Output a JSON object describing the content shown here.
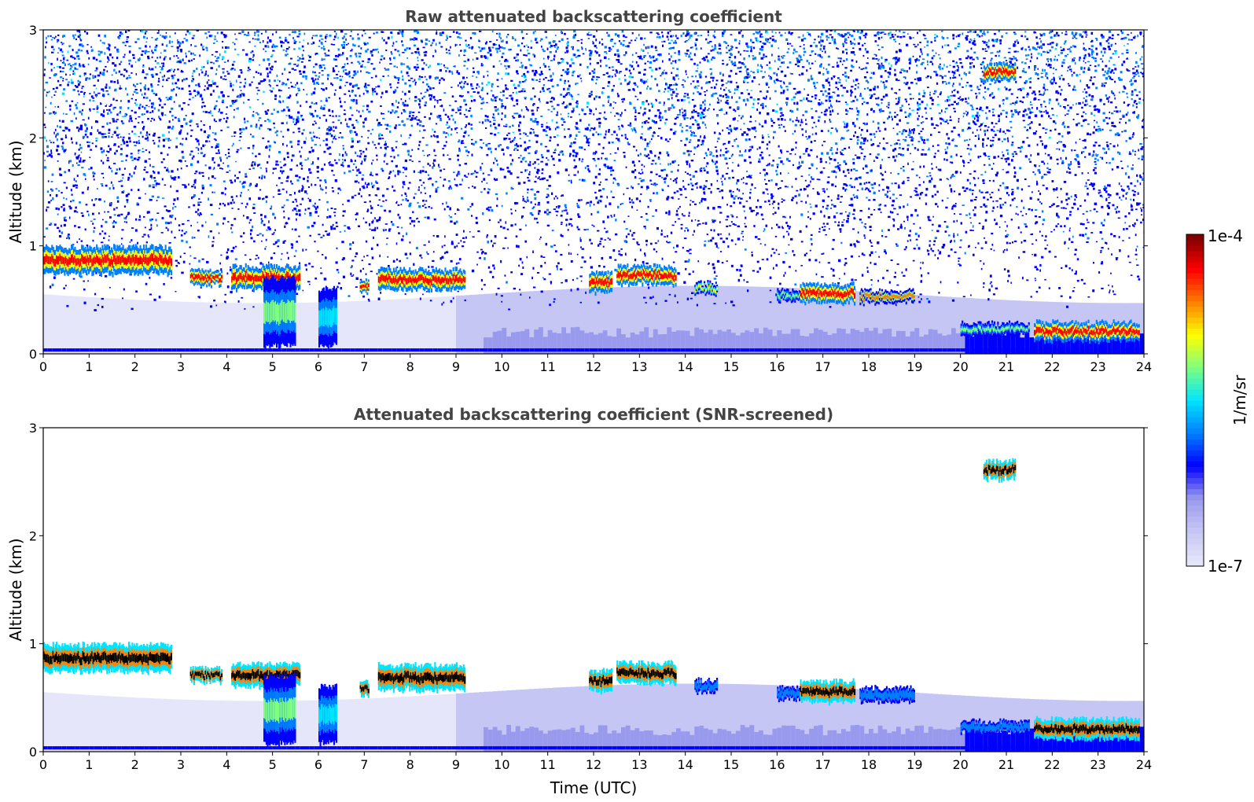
{
  "colormap": [
    "#e6e6fa",
    "#c6c6f5",
    "#9999ee",
    "#0000ff",
    "#0080ff",
    "#00e5ff",
    "#7fff7f",
    "#ffff00",
    "#ff8000",
    "#ff0000",
    "#800000"
  ],
  "chart_data": [
    {
      "type": "heatmap",
      "title": "Raw attenuated backscattering coefficient",
      "xlabel": "",
      "ylabel": "Altitude (km)",
      "xlim": [
        0,
        24
      ],
      "ylim": [
        0,
        3
      ],
      "xticks": [
        "0",
        "1",
        "2",
        "3",
        "4",
        "5",
        "6",
        "7",
        "8",
        "9",
        "10",
        "11",
        "12",
        "13",
        "14",
        "15",
        "16",
        "17",
        "18",
        "19",
        "20",
        "21",
        "22",
        "23",
        "24"
      ],
      "yticks": [
        "0",
        "1",
        "2",
        "3"
      ],
      "noise": "high",
      "features": [
        {
          "t0": 0.0,
          "t1": 2.8,
          "alt": 0.88,
          "thick": 0.22,
          "level": 9
        },
        {
          "t0": 3.2,
          "t1": 3.9,
          "alt": 0.72,
          "thick": 0.1,
          "level": 9
        },
        {
          "t0": 4.1,
          "t1": 5.6,
          "alt": 0.72,
          "thick": 0.18,
          "level": 9
        },
        {
          "t0": 6.9,
          "t1": 7.1,
          "alt": 0.64,
          "thick": 0.08,
          "level": 9
        },
        {
          "t0": 7.3,
          "t1": 9.2,
          "alt": 0.7,
          "thick": 0.16,
          "level": 9
        },
        {
          "t0": 11.9,
          "t1": 12.4,
          "alt": 0.67,
          "thick": 0.16,
          "level": 9
        },
        {
          "t0": 12.5,
          "t1": 13.8,
          "alt": 0.74,
          "thick": 0.14,
          "level": 9
        },
        {
          "t0": 14.2,
          "t1": 14.7,
          "alt": 0.62,
          "thick": 0.07,
          "level": 7
        },
        {
          "t0": 16.0,
          "t1": 16.5,
          "alt": 0.55,
          "thick": 0.07,
          "level": 6
        },
        {
          "t0": 16.5,
          "t1": 17.7,
          "alt": 0.57,
          "thick": 0.14,
          "level": 9
        },
        {
          "t0": 17.8,
          "t1": 19.0,
          "alt": 0.54,
          "thick": 0.08,
          "level": 8
        },
        {
          "t0": 20.0,
          "t1": 21.5,
          "alt": 0.24,
          "thick": 0.08,
          "level": 6
        },
        {
          "t0": 21.6,
          "t1": 23.9,
          "alt": 0.22,
          "thick": 0.14,
          "level": 9
        },
        {
          "t0": 20.5,
          "t1": 21.2,
          "alt": 2.62,
          "thick": 0.12,
          "level": 9
        },
        {
          "t0": 4.8,
          "t1": 5.5,
          "alt": 0.4,
          "thick": 0.6,
          "level": 6
        },
        {
          "t0": 6.0,
          "t1": 6.4,
          "alt": 0.35,
          "thick": 0.5,
          "level": 5
        }
      ]
    },
    {
      "type": "heatmap",
      "title": "Attenuated backscattering coefficient (SNR-screened)",
      "xlabel": "Time (UTC)",
      "ylabel": "Altitude (km)",
      "xlim": [
        0,
        24
      ],
      "ylim": [
        0,
        3
      ],
      "xticks": [
        "0",
        "1",
        "2",
        "3",
        "4",
        "5",
        "6",
        "7",
        "8",
        "9",
        "10",
        "11",
        "12",
        "13",
        "14",
        "15",
        "16",
        "17",
        "18",
        "19",
        "20",
        "21",
        "22",
        "23",
        "24"
      ],
      "yticks": [
        "0",
        "1",
        "2",
        "3"
      ],
      "noise": "none",
      "features": [
        {
          "t0": 0.0,
          "t1": 2.8,
          "alt": 0.88,
          "thick": 0.22,
          "level": 10
        },
        {
          "t0": 3.2,
          "t1": 3.9,
          "alt": 0.72,
          "thick": 0.1,
          "level": 10
        },
        {
          "t0": 4.1,
          "t1": 5.6,
          "alt": 0.72,
          "thick": 0.18,
          "level": 10
        },
        {
          "t0": 6.9,
          "t1": 7.1,
          "alt": 0.6,
          "thick": 0.1,
          "level": 10
        },
        {
          "t0": 7.3,
          "t1": 9.2,
          "alt": 0.7,
          "thick": 0.2,
          "level": 10
        },
        {
          "t0": 11.9,
          "t1": 12.4,
          "alt": 0.67,
          "thick": 0.16,
          "level": 10
        },
        {
          "t0": 12.5,
          "t1": 13.8,
          "alt": 0.74,
          "thick": 0.16,
          "level": 10
        },
        {
          "t0": 14.2,
          "t1": 14.7,
          "alt": 0.62,
          "thick": 0.08,
          "level": 4
        },
        {
          "t0": 16.0,
          "t1": 16.5,
          "alt": 0.55,
          "thick": 0.08,
          "level": 4
        },
        {
          "t0": 16.5,
          "t1": 17.7,
          "alt": 0.57,
          "thick": 0.16,
          "level": 10
        },
        {
          "t0": 17.8,
          "t1": 19.0,
          "alt": 0.54,
          "thick": 0.1,
          "level": 4
        },
        {
          "t0": 20.0,
          "t1": 21.5,
          "alt": 0.24,
          "thick": 0.08,
          "level": 4
        },
        {
          "t0": 21.6,
          "t1": 23.9,
          "alt": 0.22,
          "thick": 0.16,
          "level": 10
        },
        {
          "t0": 20.5,
          "t1": 21.2,
          "alt": 2.62,
          "thick": 0.14,
          "level": 10
        },
        {
          "t0": 4.8,
          "t1": 5.5,
          "alt": 0.4,
          "thick": 0.6,
          "level": 6
        },
        {
          "t0": 6.0,
          "t1": 6.4,
          "alt": 0.35,
          "thick": 0.5,
          "level": 5
        }
      ]
    }
  ],
  "colorbar": {
    "label": "1/m/sr",
    "max_label": "1e-4",
    "min_label": "1e-7"
  }
}
